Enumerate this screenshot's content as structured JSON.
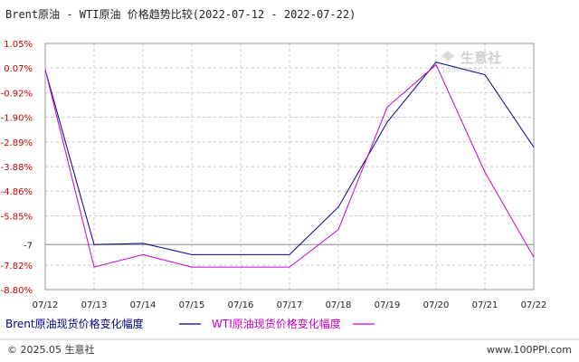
{
  "title": "Brent原油 - WTI原油 价格趋势比较(2022-07-12 - 2022-07-22)",
  "watermark": {
    "text": "生意社",
    "sub": "100PPI.COM"
  },
  "legend": {
    "brent": "Brent原油现货价格变化幅度",
    "wti": "WTI原油现货价格变化幅度"
  },
  "footer": {
    "copyright": "© 2025.05 生意社",
    "site": "www.100PPI.com"
  },
  "colors": {
    "brent": "#000088",
    "wti": "#cc00cc",
    "grid": "#c8c8c8",
    "tick_red": "#cc0000"
  },
  "chart_data": {
    "type": "line",
    "title": "Brent原油 - WTI原油 价格趋势比较(2022-07-12 - 2022-07-22)",
    "categories": [
      "07/12",
      "07/13",
      "07/14",
      "07/15",
      "07/16",
      "07/17",
      "07/18",
      "07/19",
      "07/20",
      "07/21",
      "07/22"
    ],
    "yticks": [
      "1.05%",
      "0.07%",
      "-0.92%",
      "-1.90%",
      "-2.89%",
      "-3.88%",
      "-4.86%",
      "-5.85%",
      "-7",
      "-7.82%",
      "-8.80%"
    ],
    "ylim": [
      -8.8,
      1.05
    ],
    "grid": true,
    "legend_position": "bottom",
    "series": [
      {
        "name": "Brent原油现货价格变化幅度",
        "values": [
          0.0,
          -7.0,
          -6.95,
          -7.4,
          -7.4,
          -7.4,
          -5.5,
          -2.1,
          0.3,
          -0.2,
          -3.1
        ]
      },
      {
        "name": "WTI原油现货价格变化幅度",
        "values": [
          0.0,
          -7.9,
          -7.4,
          -7.9,
          -7.9,
          -7.9,
          -6.4,
          -1.5,
          0.2,
          -4.1,
          -7.5
        ]
      }
    ]
  }
}
